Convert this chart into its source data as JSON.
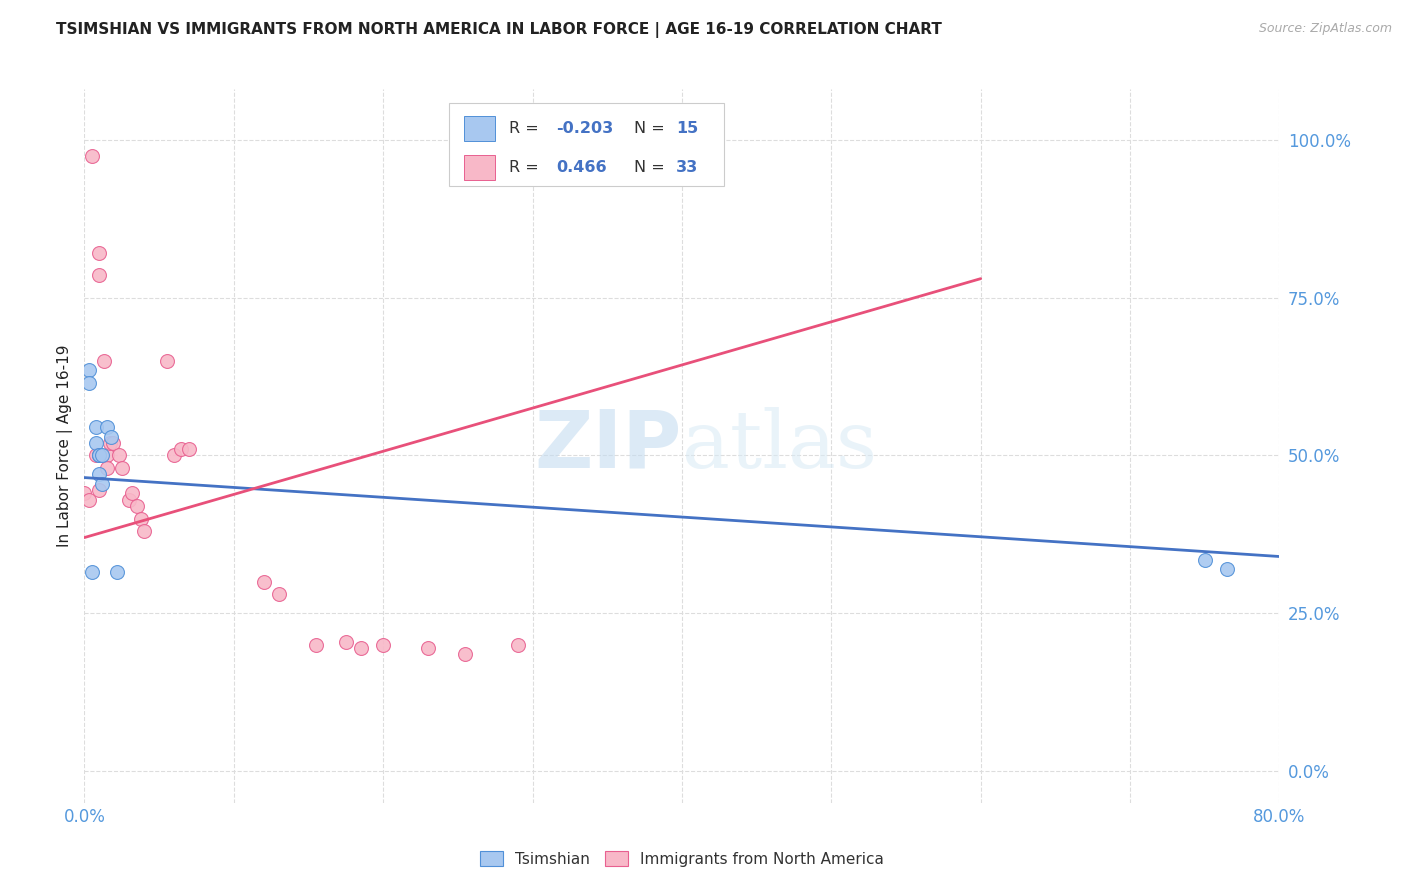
{
  "title": "TSIMSHIAN VS IMMIGRANTS FROM NORTH AMERICA IN LABOR FORCE | AGE 16-19 CORRELATION CHART",
  "source": "Source: ZipAtlas.com",
  "ylabel": "In Labor Force | Age 16-19",
  "ytick_labels": [
    "0.0%",
    "25.0%",
    "50.0%",
    "75.0%",
    "100.0%"
  ],
  "ytick_vals": [
    0.0,
    0.25,
    0.5,
    0.75,
    1.0
  ],
  "xlim": [
    0.0,
    0.8
  ],
  "ylim": [
    -0.05,
    1.08
  ],
  "watermark_zip": "ZIP",
  "watermark_atlas": "atlas",
  "legend_blue_r": "-0.203",
  "legend_blue_n": "15",
  "legend_pink_r": "0.466",
  "legend_pink_n": "33",
  "blue_fill": "#A8C8F0",
  "pink_fill": "#F8B8C8",
  "blue_edge": "#5090D8",
  "pink_edge": "#E86090",
  "blue_line": "#4472C4",
  "pink_line": "#E8507A",
  "tsimshian_x": [
    0.003,
    0.003,
    0.005,
    0.008,
    0.008,
    0.01,
    0.01,
    0.01,
    0.012,
    0.012,
    0.015,
    0.018,
    0.022,
    0.75,
    0.765
  ],
  "tsimshian_y": [
    0.635,
    0.615,
    0.315,
    0.545,
    0.52,
    0.5,
    0.5,
    0.47,
    0.455,
    0.5,
    0.545,
    0.53,
    0.315,
    0.335,
    0.32
  ],
  "immigrants_x": [
    0.0,
    0.003,
    0.005,
    0.008,
    0.01,
    0.01,
    0.01,
    0.01,
    0.013,
    0.015,
    0.015,
    0.017,
    0.019,
    0.023,
    0.025,
    0.03,
    0.032,
    0.035,
    0.038,
    0.04,
    0.055,
    0.06,
    0.065,
    0.07,
    0.12,
    0.13,
    0.155,
    0.175,
    0.185,
    0.2,
    0.23,
    0.255,
    0.29
  ],
  "immigrants_y": [
    0.44,
    0.43,
    0.975,
    0.5,
    0.82,
    0.785,
    0.5,
    0.445,
    0.65,
    0.5,
    0.48,
    0.52,
    0.52,
    0.5,
    0.48,
    0.43,
    0.44,
    0.42,
    0.4,
    0.38,
    0.65,
    0.5,
    0.51,
    0.51,
    0.3,
    0.28,
    0.2,
    0.205,
    0.195,
    0.2,
    0.195,
    0.185,
    0.2
  ],
  "blue_trend_x": [
    0.0,
    0.8
  ],
  "blue_trend_y": [
    0.465,
    0.34
  ],
  "pink_trend_x": [
    0.0,
    0.6
  ],
  "pink_trend_y": [
    0.37,
    0.78
  ],
  "bg_color": "#FFFFFF",
  "grid_color": "#DDDDDD",
  "title_color": "#222222",
  "source_color": "#AAAAAA",
  "tick_blue": "#5599DD",
  "marker_size": 100
}
